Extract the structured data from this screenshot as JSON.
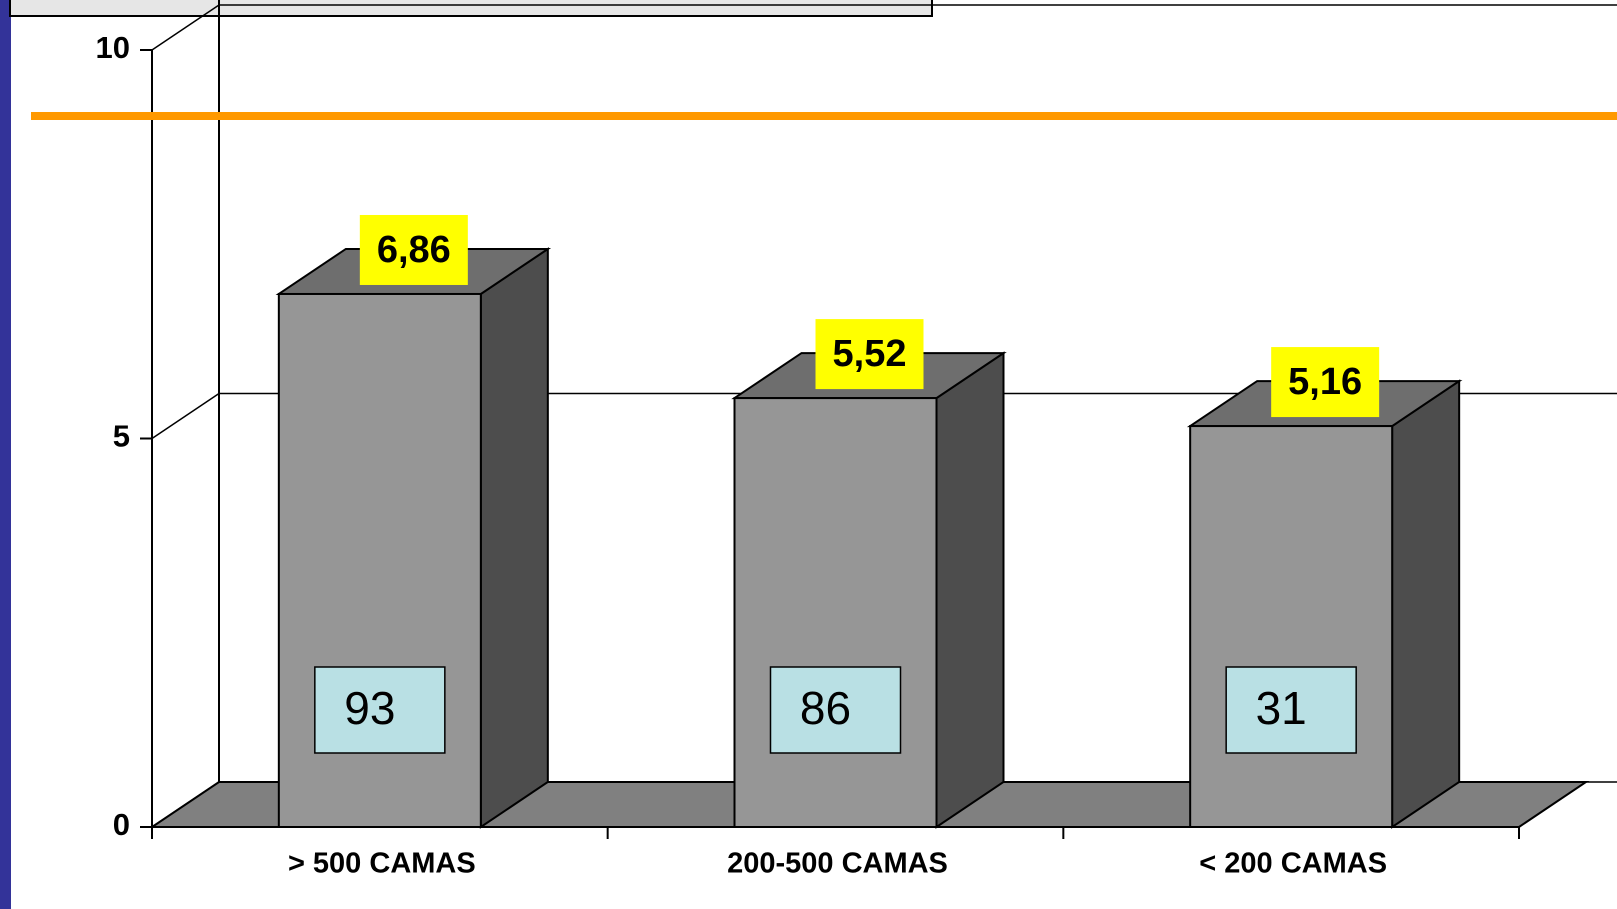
{
  "chart_data": {
    "type": "bar3d",
    "categories": [
      "> 500 CAMAS",
      "200-500 CAMAS",
      "< 200 CAMAS"
    ],
    "values": [
      6.86,
      5.52,
      5.16
    ],
    "value_labels": [
      "6,86",
      "5,52",
      "5,16"
    ],
    "counts": [
      93,
      86,
      31
    ],
    "color": "#969696",
    "ylim": [
      0,
      10
    ],
    "yticks": [
      0,
      5,
      10
    ],
    "grid": true,
    "reference_line": {
      "value": 9.15,
      "color": "#ff9900"
    }
  }
}
